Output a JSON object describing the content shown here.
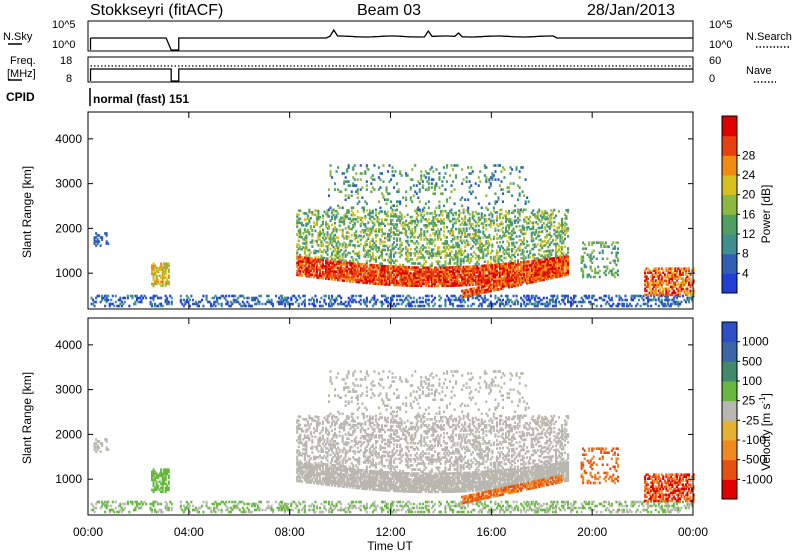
{
  "header": {
    "station": "Stokkseyri (fitACF)",
    "beam": "Beam 03",
    "date": "28/Jan/2013"
  },
  "aux": {
    "nsky_label": "N.Sky",
    "nsky_ticks": [
      "10^5",
      "10^0"
    ],
    "nsearch_label": "N.Search",
    "nsearch_ticks": [
      "10^5",
      "10^0"
    ],
    "freq_label": "Freq.",
    "freq_unit": "[MHz]",
    "freq_ticks": [
      "18",
      "8"
    ],
    "nave_label": "Nave",
    "nave_ticks": [
      "60",
      "0"
    ],
    "cpid_label": "CPID",
    "cpid_value": "normal (fast) 151"
  },
  "colors": {
    "power_scale": [
      "#1f3fd6",
      "#2f5fb0",
      "#3f8f8f",
      "#4fa060",
      "#8ab840",
      "#d6c020",
      "#f08a10",
      "#e84010",
      "#e00000"
    ],
    "velocity_scale": [
      "#2a4fc8",
      "#3a66a8",
      "#3f8a6a",
      "#66b840",
      "#b8b8b0",
      "#e8b030",
      "#f08a20",
      "#e85010",
      "#e00000"
    ],
    "gray": "#b8b8b0"
  },
  "chart_data": [
    {
      "type": "heatmap",
      "name": "power",
      "ylabel": "Slant Range [km]",
      "yticks": [
        "1000",
        "2000",
        "3000",
        "4000"
      ],
      "ylim": [
        200,
        4600
      ],
      "xlim": [
        0,
        24
      ],
      "colorbar_label": "Power [dB]",
      "colorbar_ticks": [
        "4",
        "8",
        "12",
        "16",
        "20",
        "24",
        "28"
      ],
      "colorbar_range": [
        0,
        32
      ]
    },
    {
      "type": "heatmap",
      "name": "velocity",
      "ylabel": "Slant Range [km]",
      "yticks": [
        "1000",
        "2000",
        "3000",
        "4000"
      ],
      "ylim": [
        200,
        4600
      ],
      "xlim": [
        0,
        24
      ],
      "xlabel": "Time UT",
      "xticks": [
        "00:00",
        "04:00",
        "08:00",
        "12:00",
        "16:00",
        "20:00",
        "00:00"
      ],
      "colorbar_label": "Velocity [m s",
      "colorbar_label_sup": "-1",
      "colorbar_ticks": [
        "1000",
        "500",
        "100",
        "25",
        "-25",
        "-100",
        "-500",
        "-1000"
      ]
    }
  ]
}
